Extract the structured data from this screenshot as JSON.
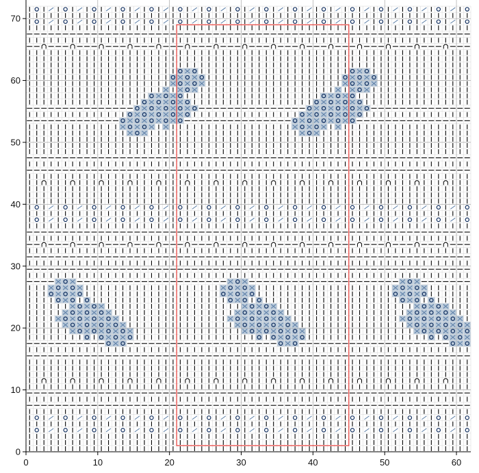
{
  "chart_data": {
    "type": "heatmap",
    "subtype": "knitting-stitch-chart",
    "title": "",
    "xlabel": "",
    "ylabel": "",
    "xlim": [
      0,
      62
    ],
    "ylim": [
      0,
      73
    ],
    "x_ticks": [
      {
        "value": 0,
        "label": "0"
      },
      {
        "value": 10,
        "label": "10"
      },
      {
        "value": 20,
        "label": "20"
      },
      {
        "value": 30,
        "label": "30"
      },
      {
        "value": 40,
        "label": "40"
      },
      {
        "value": 50,
        "label": "50"
      },
      {
        "value": 60,
        "label": "60"
      }
    ],
    "y_ticks": [
      {
        "value": 0,
        "label": "0"
      },
      {
        "value": 10,
        "label": "10"
      },
      {
        "value": 20,
        "label": "20"
      },
      {
        "value": 30,
        "label": "30"
      },
      {
        "value": 40,
        "label": "40"
      },
      {
        "value": 50,
        "label": "50"
      },
      {
        "value": 60,
        "label": "60"
      },
      {
        "value": 70,
        "label": "70"
      }
    ],
    "columns": 62,
    "rows": 72,
    "grid": true,
    "highlight_rect": {
      "x0": 21,
      "x1": 45,
      "y0": 1,
      "y1": 69,
      "color": "#e53935"
    },
    "colors": {
      "lace_fill": "#b9c9d9",
      "yarn_over": "#0d2b5c",
      "decrease": "#5a7da6",
      "knit_mark": "#000000",
      "purl_mark": "#000000",
      "cable_mark": "#000000",
      "background": "#ffffff"
    },
    "row_kinds": {
      "knit": [
        1,
        3,
        5,
        7,
        9,
        11,
        13,
        15,
        17,
        19,
        21,
        23,
        25,
        27,
        29,
        31,
        33,
        35,
        37,
        39,
        41,
        43,
        45,
        47,
        49,
        51,
        53,
        55,
        57,
        59,
        61,
        63,
        65,
        67,
        69,
        71
      ],
      "purl": [
        8,
        10,
        16,
        18,
        28,
        30,
        32,
        34,
        36,
        46,
        48,
        54,
        56,
        66,
        68
      ],
      "cable": [
        12,
        34,
        44,
        66
      ],
      "eyelet": [
        4,
        6,
        38,
        40,
        70,
        72
      ]
    },
    "lace_motifs": [
      {
        "cx": 9,
        "cy": 22,
        "dir": 1
      },
      {
        "cx": 33,
        "cy": 22,
        "dir": 1
      },
      {
        "cx": 57,
        "cy": 22,
        "dir": 1
      },
      {
        "cx": 20,
        "cy": 56,
        "dir": -1
      },
      {
        "cx": 44,
        "cy": 56,
        "dir": -1
      }
    ],
    "series": []
  }
}
